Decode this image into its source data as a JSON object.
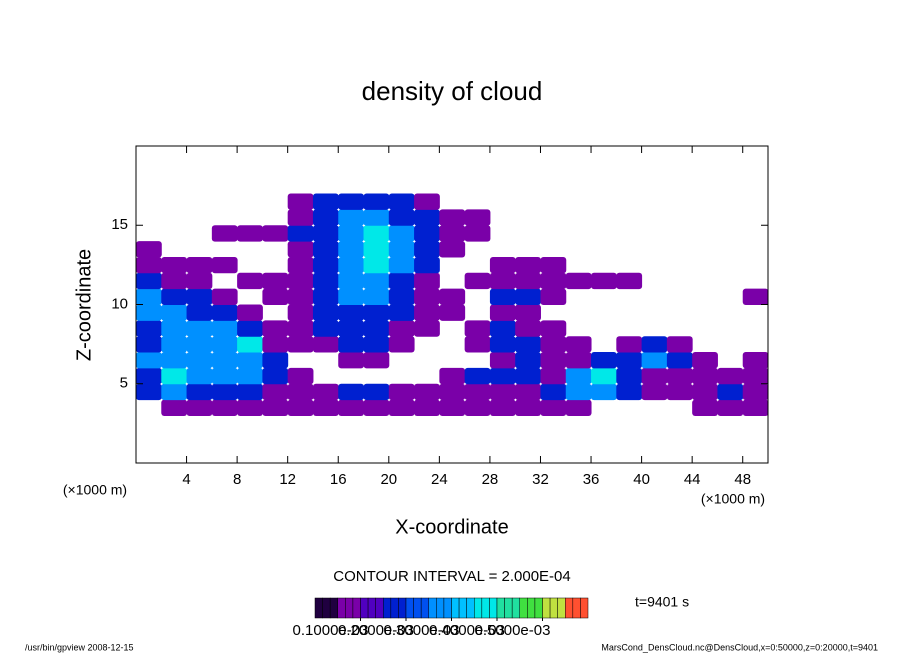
{
  "chart_data": {
    "type": "contour",
    "title": "density of cloud",
    "xlabel": "X-coordinate",
    "ylabel": "Z-coordinate",
    "xunit_left": "(×1000 m)",
    "xunit_right": "(×1000 m)",
    "contour_interval": "CONTOUR INTERVAL = 2.000E-04",
    "time_label": "t=9401 s",
    "footer_left": "/usr/bin/gpview   2008-12-15",
    "footer_right": "MarsCond_DensCloud.nc@DensCloud,x=0:50000,z=0:20000,t=9401",
    "xlim": [
      0,
      50
    ],
    "ylim": [
      0,
      20
    ],
    "xticks": [
      4,
      8,
      12,
      16,
      20,
      24,
      28,
      32,
      36,
      40,
      44,
      48
    ],
    "yticks": [
      5,
      10,
      15
    ],
    "x": [
      1,
      3,
      5,
      7,
      9,
      11,
      13,
      15,
      17,
      19,
      21,
      23,
      25,
      27,
      29,
      31,
      33,
      35,
      37,
      39,
      41,
      43,
      45,
      47,
      49
    ],
    "z": [
      3.5,
      4.5,
      5.5,
      6.5,
      7.5,
      8.5,
      9.5,
      10.5,
      11.5,
      12.5,
      13.5,
      14.5,
      15.5,
      16.5
    ],
    "values": [
      [
        0,
        5e-05,
        5e-05,
        5e-05,
        5e-05,
        5e-05,
        5e-05,
        5e-05,
        5e-05,
        5e-05,
        5e-05,
        5e-05,
        5e-05,
        5e-05,
        5e-05,
        5e-05,
        5e-05,
        5e-05,
        0,
        0,
        0,
        0,
        5e-05,
        5e-05,
        5e-05
      ],
      [
        0.00015,
        0.00025,
        0.00015,
        0.00015,
        0.00015,
        5e-05,
        5e-05,
        5e-05,
        0.00015,
        0.00015,
        5e-05,
        5e-05,
        5e-05,
        5e-05,
        5e-05,
        5e-05,
        0.00015,
        0.00025,
        0.00025,
        0.00015,
        5e-05,
        5e-05,
        5e-05,
        0.00015,
        5e-05
      ],
      [
        0.00015,
        0.00035,
        0.00025,
        0.00025,
        0.00025,
        0.00015,
        5e-05,
        0,
        0,
        0,
        0,
        0,
        5e-05,
        0.00015,
        0.00015,
        0.00015,
        5e-05,
        0.00025,
        0.00035,
        0.00015,
        5e-05,
        5e-05,
        5e-05,
        5e-05,
        5e-05
      ],
      [
        0.00025,
        0.00025,
        0.00025,
        0.00025,
        0.00025,
        0.00015,
        0,
        0,
        5e-05,
        5e-05,
        0,
        0,
        0,
        0,
        5e-05,
        0.00015,
        5e-05,
        5e-05,
        0.00015,
        0.00015,
        0.00025,
        0.00015,
        5e-05,
        0,
        5e-05
      ],
      [
        0.00015,
        0.00025,
        0.00025,
        0.00025,
        0.00035,
        5e-05,
        5e-05,
        5e-05,
        0.00015,
        0.00015,
        5e-05,
        0,
        0,
        5e-05,
        0.00015,
        0.00015,
        5e-05,
        5e-05,
        0,
        5e-05,
        0.00015,
        5e-05,
        0,
        0,
        0
      ],
      [
        0.00015,
        0.00025,
        0.00025,
        0.00025,
        0.00015,
        5e-05,
        5e-05,
        0.00015,
        0.00015,
        0.00015,
        5e-05,
        5e-05,
        0,
        5e-05,
        0.00015,
        5e-05,
        5e-05,
        0,
        0,
        0,
        0,
        0,
        0,
        0,
        0
      ],
      [
        0.00025,
        0.00025,
        0.00015,
        0.00015,
        5e-05,
        0,
        5e-05,
        0.00015,
        0.00015,
        0.00015,
        0.00015,
        5e-05,
        5e-05,
        0,
        5e-05,
        5e-05,
        0,
        0,
        0,
        0,
        0,
        0,
        0,
        0,
        0
      ],
      [
        0.00025,
        0.00015,
        0.00015,
        5e-05,
        0,
        5e-05,
        5e-05,
        0.00015,
        0.00025,
        0.00025,
        0.00015,
        5e-05,
        5e-05,
        0,
        0.00015,
        0.00015,
        5e-05,
        0,
        0,
        0,
        0,
        0,
        0,
        0,
        5e-05
      ],
      [
        0.00015,
        5e-05,
        5e-05,
        0,
        5e-05,
        5e-05,
        5e-05,
        0.00015,
        0.00025,
        0.00025,
        0.00015,
        5e-05,
        0,
        5e-05,
        5e-05,
        5e-05,
        5e-05,
        5e-05,
        5e-05,
        5e-05,
        0,
        0,
        0,
        0,
        0
      ],
      [
        5e-05,
        5e-05,
        5e-05,
        5e-05,
        0,
        0,
        5e-05,
        0.00015,
        0.00025,
        0.00035,
        0.00025,
        0.00015,
        0,
        0,
        5e-05,
        5e-05,
        5e-05,
        0,
        0,
        0,
        0,
        0,
        0,
        0,
        0
      ],
      [
        5e-05,
        0,
        0,
        0,
        0,
        0,
        5e-05,
        0.00015,
        0.00025,
        0.00035,
        0.00025,
        0.00015,
        5e-05,
        0,
        0,
        0,
        0,
        0,
        0,
        0,
        0,
        0,
        0,
        0,
        0
      ],
      [
        0,
        0,
        0,
        5e-05,
        5e-05,
        5e-05,
        0.00015,
        0.00015,
        0.00025,
        0.00035,
        0.00025,
        0.00015,
        5e-05,
        5e-05,
        0,
        0,
        0,
        0,
        0,
        0,
        0,
        0,
        0,
        0,
        0
      ],
      [
        0,
        0,
        0,
        0,
        0,
        0,
        5e-05,
        0.00015,
        0.00025,
        0.00025,
        0.00015,
        0.00015,
        5e-05,
        5e-05,
        0,
        0,
        0,
        0,
        0,
        0,
        0,
        0,
        0,
        0,
        0
      ],
      [
        0,
        0,
        0,
        0,
        0,
        0,
        5e-05,
        0.00015,
        0.00015,
        0.00015,
        0.00015,
        5e-05,
        0,
        0,
        0,
        0,
        0,
        0,
        0,
        0,
        0,
        0,
        0,
        0,
        0
      ]
    ],
    "colors": [
      "#200040",
      "#7a00a8",
      "#5000c0",
      "#0020d0",
      "#0050f0",
      "#0090ff",
      "#00c0ff",
      "#00e8e8",
      "#20e0a0",
      "#40e040",
      "#c0e040",
      "#ff5030"
    ],
    "colorbar_range": [
      0,
      0.0006
    ],
    "colorbar_ticks": [
      {
        "value": 0.0001,
        "label": "0.1000e-03"
      },
      {
        "value": 0.0002,
        "label": "0.2000e-03"
      },
      {
        "value": 0.0003,
        "label": "0.3000e-03"
      },
      {
        "value": 0.0004,
        "label": "0.4000e-03"
      },
      {
        "value": 0.0005,
        "label": "0.5000e-03"
      }
    ]
  }
}
